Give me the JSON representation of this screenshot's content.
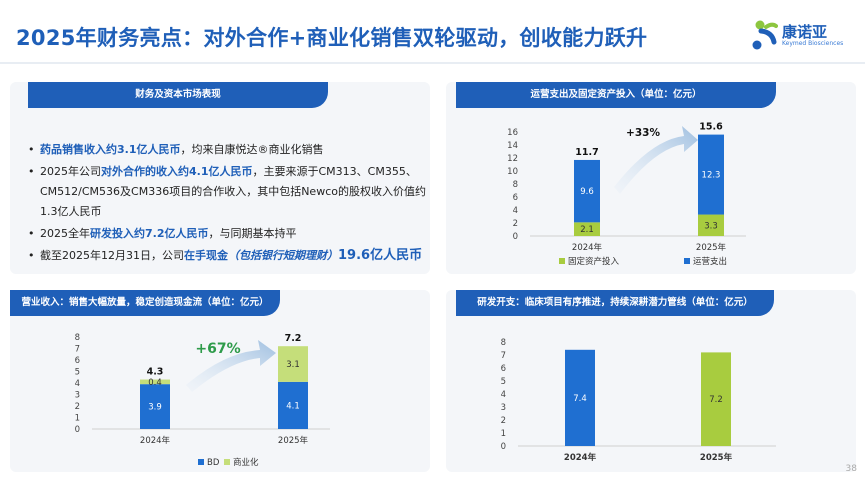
{
  "title": "2025年财务亮点：对外合作+商业化销售双轮驱动，创收能力跃升",
  "logo": {
    "name": "康诺亚",
    "sub": "Keymed Biosciences"
  },
  "page_number": "38",
  "colors": {
    "primary": "#1f5fb8",
    "bar_blue": "#1f6fd1",
    "bar_green": "#a8cc3f"
  },
  "panel1": {
    "title": "财务及资本市场表现",
    "b1": {
      "hl": "药品销售收入约3.1亿人民币",
      "rest": "，均来自康悦达®商业化销售"
    },
    "b2": {
      "pre": "2025年公司",
      "hl": "对外合作的收入约4.1亿人民币",
      "rest": "，主要来源于CM313、CM355、CM512/CM536及CM336项目的合作收入，其中包括Newco的股权收入价值约1.3亿人民币"
    },
    "b3": {
      "pre": "2025全年",
      "hl": "研发投入约7.2亿人民币",
      "rest": "，与同期基本持平"
    },
    "b4": {
      "pre": "截至2025年12月31日，公司",
      "hl": "在手现金",
      "hl_it": "（包括银行短期理财）",
      "hl_big": "19.6亿人民币"
    }
  },
  "panel2": {
    "title": "运营支出及固定资产投入（单位：亿元）",
    "growth": "+33%"
  },
  "panel3": {
    "title": "营业收入：销售大幅放量，稳定创造现金流（单位：亿元）",
    "growth": "+67%"
  },
  "panel4": {
    "title": "研发开支：临床项目有序推进，持续深耕潜力管线（单位：亿元）"
  },
  "chart_data": [
    {
      "type": "bar",
      "stacked": true,
      "categories": [
        "2024年",
        "2025年"
      ],
      "series": [
        {
          "name": "固定资产投入",
          "values": [
            2.1,
            3.3
          ],
          "color": "#a8cc3f"
        },
        {
          "name": "运营支出",
          "values": [
            9.6,
            12.3
          ],
          "color": "#1f6fd1"
        }
      ],
      "totals": [
        "11.7",
        "15.6"
      ],
      "ylim": [
        0,
        16
      ],
      "yticks": [
        "0",
        "2",
        "4",
        "6",
        "8",
        "10",
        "12",
        "14",
        "16"
      ]
    },
    {
      "type": "bar",
      "stacked": true,
      "categories": [
        "2024年",
        "2025年"
      ],
      "series": [
        {
          "name": "BD",
          "values": [
            3.9,
            4.1
          ],
          "color": "#1f6fd1"
        },
        {
          "name": "商业化",
          "values": [
            0.4,
            3.1
          ],
          "color": "#c5de7a"
        }
      ],
      "totals": [
        "4.3",
        "7.2"
      ],
      "ylim": [
        0,
        8
      ],
      "yticks": [
        "0",
        "1",
        "2",
        "3",
        "4",
        "5",
        "6",
        "7",
        "8"
      ]
    },
    {
      "type": "bar",
      "categories": [
        "2024年",
        "2025年"
      ],
      "values": [
        7.4,
        7.2
      ],
      "value_labels": [
        "7.4",
        "7.2"
      ],
      "colors": [
        "#1f6fd1",
        "#a8cc3f"
      ],
      "ylim": [
        0,
        8
      ],
      "yticks": [
        "0",
        "1",
        "2",
        "3",
        "4",
        "5",
        "6",
        "7",
        "8"
      ]
    }
  ]
}
